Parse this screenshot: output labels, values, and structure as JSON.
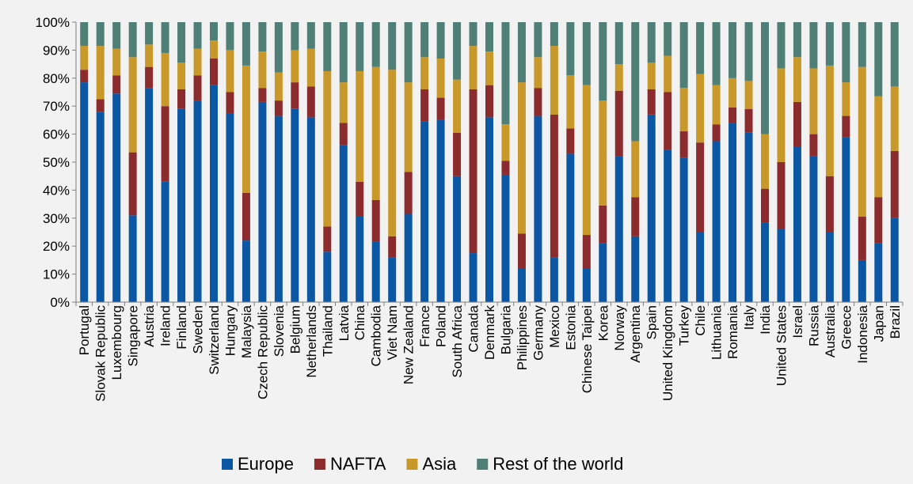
{
  "chart_data": {
    "type": "bar",
    "stacked": true,
    "stack_mode": "percent",
    "title": "",
    "xlabel": "",
    "ylabel": "",
    "ylim": [
      0,
      100
    ],
    "yticks": [
      "0%",
      "10%",
      "20%",
      "30%",
      "40%",
      "50%",
      "60%",
      "70%",
      "80%",
      "90%",
      "100%"
    ],
    "grid": false,
    "legend_position": "bottom",
    "categories": [
      "Portugal",
      "Slovak Republic",
      "Luxembourg",
      "Singapore",
      "Austria",
      "Ireland",
      "Finland",
      "Sweden",
      "Switzerland",
      "Hungary",
      "Malaysia",
      "Czech Republic",
      "Slovenia",
      "Belgium",
      "Netherlands",
      "Thailand",
      "Latvia",
      "China",
      "Cambodia",
      "Viet Nam",
      "New Zealand",
      "France",
      "Poland",
      "South Africa",
      "Canada",
      "Denmark",
      "Bulgaria",
      "Philippines",
      "Germany",
      "Mexico",
      "Estonia",
      "Chinese Taipei",
      "Korea",
      "Norway",
      "Argentina",
      "Spain",
      "United Kingdom",
      "Turkey",
      "Chile",
      "Lithuania",
      "Romania",
      "Italy",
      "India",
      "United States",
      "Israel",
      "Russia",
      "Australia",
      "Greece",
      "Indonesia",
      "Japan",
      "Brazil"
    ],
    "series": [
      {
        "name": "Europe",
        "color": "#0b57a4",
        "values": [
          78.5,
          68,
          74.5,
          31,
          76.5,
          43,
          69,
          72,
          77.5,
          67.5,
          22,
          71.5,
          66.5,
          69,
          66,
          18,
          56,
          30.5,
          21.5,
          16,
          31.5,
          64.5,
          65,
          45,
          17.5,
          66,
          45.5,
          12,
          66.5,
          16,
          53,
          12,
          21,
          52,
          23.5,
          67,
          54.5,
          51.5,
          25,
          57.5,
          64,
          60.5,
          28.5,
          26,
          55.5,
          52,
          25,
          59,
          15,
          21,
          30
        ]
      },
      {
        "name": "NAFTA",
        "color": "#8c2b2d",
        "values": [
          4.5,
          4.5,
          6.5,
          22.5,
          7.5,
          27,
          7,
          9,
          9.5,
          7.5,
          17,
          5,
          5.5,
          9.5,
          11,
          9,
          8,
          12.5,
          15,
          7.5,
          15,
          11.5,
          8,
          15.5,
          58.5,
          11.5,
          5,
          12.5,
          10,
          51,
          9,
          12,
          13.5,
          23.5,
          14,
          9,
          20.5,
          9.5,
          32,
          6,
          5.5,
          8.5,
          12,
          24,
          16,
          8,
          20,
          7.5,
          15.5,
          16.5,
          24
        ]
      },
      {
        "name": "Asia",
        "color": "#c9982a",
        "values": [
          8.5,
          19,
          9.5,
          34,
          8,
          19,
          9.5,
          9.5,
          6.5,
          15,
          45.5,
          13,
          10,
          11.5,
          13.5,
          55.5,
          14.5,
          39.5,
          47.5,
          59.5,
          32,
          11.5,
          14,
          19,
          15.5,
          12,
          13,
          54,
          11,
          24.5,
          19,
          53.5,
          37.5,
          9.5,
          20,
          9.5,
          13,
          15.5,
          24.5,
          14,
          10.5,
          10,
          19.5,
          33.5,
          16,
          23.5,
          39.5,
          12,
          53.5,
          36,
          23
        ]
      },
      {
        "name": "Rest of the world",
        "color": "#4f7f77",
        "values": [
          8.5,
          8.5,
          9.5,
          12.5,
          8,
          11,
          14.5,
          9.5,
          6.5,
          10,
          15.5,
          10.5,
          18,
          10,
          9.5,
          17.5,
          21.5,
          17.5,
          16,
          17,
          21.5,
          12.5,
          13,
          20.5,
          8.5,
          10.5,
          36.5,
          21.5,
          12.5,
          8.5,
          19,
          22.5,
          28,
          15,
          42.5,
          14.5,
          12,
          23.5,
          18.5,
          22.5,
          20,
          21,
          40,
          16.5,
          12.5,
          16.5,
          15.5,
          21.5,
          16,
          26.5,
          23
        ]
      }
    ]
  }
}
